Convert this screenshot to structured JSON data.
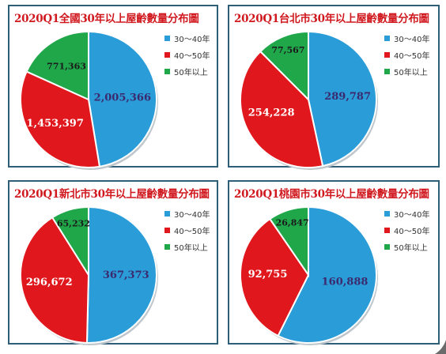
{
  "colors": {
    "blue": "#2a9cd8",
    "red": "#e0181d",
    "green": "#1fa74a",
    "title": "#d0181e",
    "border": "#2f5f78"
  },
  "chart_data": [
    {
      "type": "pie",
      "title": "2020Q1全國30年以上屋齡數量分布圖",
      "categories": [
        "30～40年",
        "40～50年",
        "50年以上"
      ],
      "values": [
        2005366,
        1453397,
        771363
      ],
      "labels": [
        "2,005,366",
        "1,453,397",
        "771,363"
      ],
      "legend_position": "right"
    },
    {
      "type": "pie",
      "title": "2020Q1台北市30年以上屋齡數量分布圖",
      "categories": [
        "30～40年",
        "40～50年",
        "50年以上"
      ],
      "values": [
        289787,
        254228,
        77567
      ],
      "labels": [
        "289,787",
        "254,228",
        "77,567"
      ],
      "legend_position": "right"
    },
    {
      "type": "pie",
      "title": "2020Q1新北市30年以上屋齡數量分布圖",
      "categories": [
        "30～40年",
        "40～50年",
        "50年以上"
      ],
      "values": [
        367373,
        296672,
        65232
      ],
      "labels": [
        "367,373",
        "296,672",
        "65,232"
      ],
      "legend_position": "right"
    },
    {
      "type": "pie",
      "title": "2020Q1桃園市30年以上屋齡數量分布圖",
      "categories": [
        "30～40年",
        "40～50年",
        "50年以上"
      ],
      "values": [
        160888,
        92755,
        26847
      ],
      "labels": [
        "160,888",
        "92,755",
        "26,847"
      ],
      "legend_position": "right"
    }
  ]
}
